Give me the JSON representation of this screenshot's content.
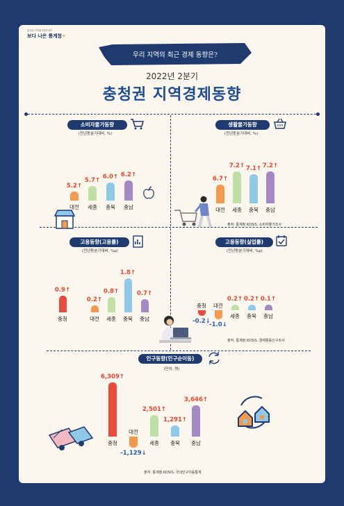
{
  "header": {
    "logo_small": "통계청 지역통계협력센터",
    "logo_text": "보다 나은 통계청",
    "banner": "우리 지역의 최근 경제 동향은?",
    "year": "2022년 2분기",
    "title": "충청권 지역경제동향"
  },
  "colors": {
    "navy": "#1e3a6e",
    "orange": "#f49a4e",
    "green": "#bfe0a4",
    "blue": "#8ec9ea",
    "purple": "#a38ac4",
    "red": "#e84a3c",
    "up_text": "#e4472c",
    "down_text": "#2a5fb0"
  },
  "chart_data": [
    {
      "type": "bar",
      "title": "소비자물가동향",
      "unit": "(전년동분기대비, %)",
      "categories": [
        "대전",
        "세종",
        "충북",
        "충남"
      ],
      "values": [
        5.2,
        5.7,
        6.0,
        6.2
      ],
      "labels": [
        "5.2↑",
        "5.7↑",
        "6.0↑",
        "6.2↑"
      ]
    },
    {
      "type": "bar",
      "title": "생활물가동향",
      "unit": "(전년동분기대비, %)",
      "categories": [
        "대전",
        "세종",
        "충북",
        "충남"
      ],
      "values": [
        6.7,
        7.2,
        7.1,
        7.2
      ],
      "labels": [
        "6.7↑",
        "7.2↑",
        "7.1↑",
        "7.2↑"
      ]
    },
    {
      "type": "bar",
      "title": "고용동향(고용률)",
      "unit": "(전년동분기대비, %p)",
      "categories": [
        "충청",
        "대전",
        "세종",
        "충북",
        "충남"
      ],
      "values": [
        0.9,
        0.2,
        0.8,
        1.8,
        0.7
      ],
      "labels": [
        "0.9↑",
        "0.2↑",
        "0.8↑",
        "1.8↑",
        "0.7↑"
      ]
    },
    {
      "type": "bar",
      "title": "고용동향(실업률)",
      "unit": "(전년동분기대비, %p)",
      "categories": [
        "충청",
        "대전",
        "세종",
        "충북",
        "충남"
      ],
      "values": [
        -0.2,
        -1.0,
        0.2,
        0.2,
        0.1
      ],
      "labels": [
        "-0.2↓",
        "-1.0↓",
        "0.2↑",
        "0.2↑",
        "0.1↑"
      ]
    },
    {
      "type": "bar",
      "title": "인구동향(인구순이동)",
      "unit": "(단위: 명)",
      "categories": [
        "충청",
        "대전",
        "세종",
        "충북",
        "충남"
      ],
      "values": [
        6309,
        -1129,
        2501,
        1291,
        3646
      ],
      "labels": [
        "6,309↑",
        "-1,129↓",
        "2,501↑",
        "1,291↑",
        "3,646↑"
      ]
    }
  ],
  "sources": {
    "price": "출처: 통계청 KOSIS, 소비자물가조사",
    "employment": "출처: 통계청 KOSIS, 경제활동인구조사",
    "population": "출처: 통계청 KOSIS, 국내인구이동통계"
  }
}
